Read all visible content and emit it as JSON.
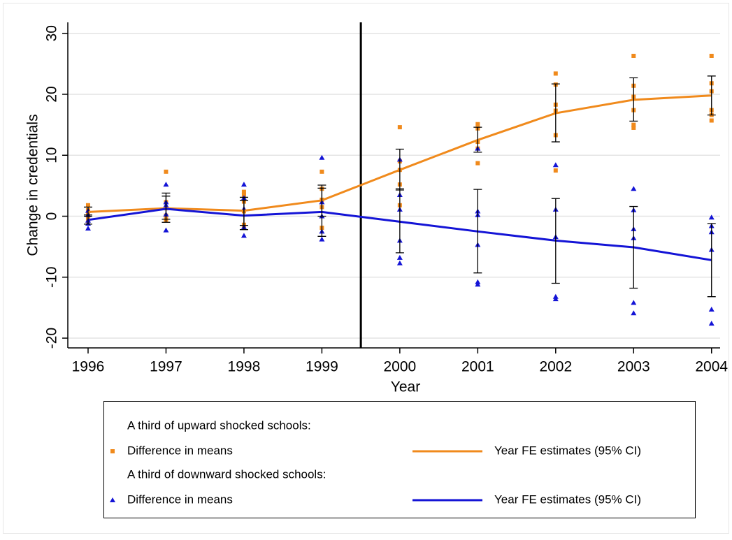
{
  "chart_data": {
    "type": "scatter-line",
    "x_label": "Year",
    "y_label": "Change in credentials",
    "x": [
      1996,
      1997,
      1998,
      1999,
      2000,
      2001,
      2002,
      2003,
      2004
    ],
    "xlim": [
      1995.74,
      2004.11
    ],
    "xticks": [
      1996,
      1997,
      1998,
      1999,
      2000,
      2001,
      2002,
      2003,
      2004
    ],
    "ylim": [
      -21.6,
      31.8
    ],
    "yticks": [
      -20,
      -10,
      0,
      10,
      20,
      30
    ],
    "grid": true,
    "vline": 1999.5,
    "groups": [
      {
        "title": "A third of upward shocked schools:",
        "points": {
          "name": "Difference in means",
          "color": "#f08a1c",
          "marker": "square",
          "values": [
            [
              1.8,
              1.0,
              0.3,
              -0.3,
              -0.8
            ],
            [
              7.3,
              2.3,
              1.3,
              0.1,
              -0.6
            ],
            [
              4.0,
              3.5,
              2.4,
              0.8,
              -1.4,
              -1.9
            ],
            [
              7.3,
              4.5,
              2.7,
              1.5,
              -1.9
            ],
            [
              14.6,
              9.0,
              7.6,
              5.2,
              1.8
            ],
            [
              15.1,
              14.4,
              12.2,
              11.1,
              8.7
            ],
            [
              23.4,
              21.6,
              18.3,
              17.3,
              13.3,
              7.5
            ],
            [
              26.3,
              21.4,
              19.6,
              17.4,
              15.0,
              14.5
            ],
            [
              26.3,
              21.8,
              20.5,
              17.4,
              16.6,
              15.7
            ]
          ]
        },
        "estimate": {
          "name": "Year FE estimates (95% CI)",
          "color": "#f08a1c",
          "values": [
            0.7,
            1.3,
            0.9,
            2.6,
            7.6,
            12.5,
            16.9,
            19.1,
            19.8
          ],
          "ci_low": [
            0.0,
            -0.5,
            -1.5,
            0.0,
            4.3,
            10.5,
            12.2,
            15.6,
            16.6
          ],
          "ci_high": [
            1.5,
            3.3,
            3.1,
            5.1,
            11.0,
            14.6,
            21.7,
            22.7,
            23.0
          ]
        }
      },
      {
        "title": "A third of downward shocked schools:",
        "points": {
          "name": "Difference in means",
          "color": "#1414d6",
          "marker": "triangle",
          "values": [
            [
              0.9,
              0.2,
              -0.7,
              -1.2,
              -2.0
            ],
            [
              5.2,
              2.3,
              1.8,
              0.3,
              -2.3
            ],
            [
              5.2,
              3.0,
              1.2,
              -1.8,
              -3.2
            ],
            [
              9.6,
              2.3,
              0.0,
              -2.5,
              -3.8
            ],
            [
              9.3,
              3.5,
              1.1,
              -4.0,
              -6.8,
              -7.7
            ],
            [
              11.1,
              0.8,
              0.2,
              -4.7,
              -10.8,
              -11.2
            ],
            [
              8.4,
              1.1,
              -3.4,
              -13.2,
              -13.6
            ],
            [
              4.5,
              1.0,
              -2.1,
              -3.6,
              -14.2,
              -15.9
            ],
            [
              -0.2,
              -1.6,
              -2.6,
              -5.5,
              -15.3,
              -17.6
            ]
          ]
        },
        "estimate": {
          "name": "Year FE estimates (95% CI)",
          "color": "#1414d6",
          "values": [
            -0.6,
            1.2,
            0.1,
            0.7,
            -0.9,
            -2.5,
            -4.0,
            -5.1,
            -7.2
          ],
          "ci_low": [
            -1.3,
            -1.0,
            -2.2,
            -3.3,
            -6.0,
            -9.3,
            -11.0,
            -11.8,
            -13.2
          ],
          "ci_high": [
            0.2,
            3.8,
            2.6,
            4.6,
            4.5,
            4.4,
            2.9,
            1.6,
            -1.2
          ]
        }
      }
    ]
  }
}
